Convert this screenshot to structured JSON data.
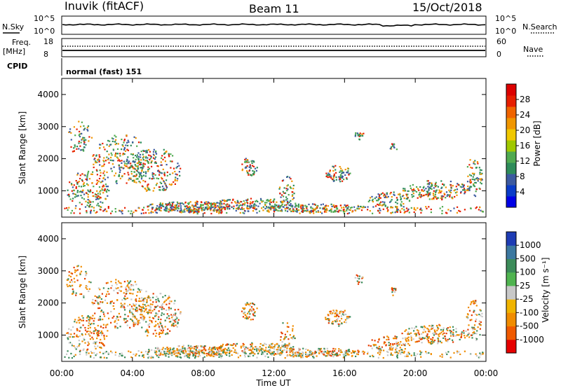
{
  "header": {
    "station": "Inuvik (fitACF)",
    "beam": "Beam 11",
    "date": "15/Oct/2018"
  },
  "panels": {
    "nsky": {
      "label": "N.Sky",
      "left_ticks": [
        "10^5",
        "10^0"
      ]
    },
    "nsearch": {
      "label": "N.Search",
      "right_ticks": [
        "10^5",
        "10^0"
      ]
    },
    "freq": {
      "label_line1": "Freq.",
      "label_line2": "[MHz]",
      "left_ticks": [
        "18",
        "8"
      ]
    },
    "nave": {
      "label": "Nave",
      "right_ticks": [
        "60",
        "0"
      ]
    },
    "cpid": {
      "label": "CPID",
      "value": "normal (fast) 151"
    }
  },
  "chart_data": [
    {
      "type": "heatmap",
      "quantity": "Power",
      "ylabel": "Slant Range [km]",
      "y_ticks": [
        1000,
        2000,
        3000,
        4000
      ],
      "ylim": [
        180,
        4500
      ],
      "xlabel": "Time UT",
      "x_ticks": [
        "00:00",
        "04:00",
        "08:00",
        "12:00",
        "16:00",
        "20:00",
        "00:00"
      ],
      "colorbar": {
        "label": "Power [dB]",
        "ticks": [
          "4",
          "8",
          "12",
          "16",
          "20",
          "24",
          "28"
        ],
        "colors": [
          "#0000e6",
          "#0a3cc8",
          "#3c5aa0",
          "#2e8c5a",
          "#50aa50",
          "#a0c800",
          "#f0c800",
          "#f09600",
          "#f06400",
          "#e61e00",
          "#dc0000"
        ]
      }
    },
    {
      "type": "heatmap",
      "quantity": "Velocity",
      "ylabel": "Slant Range [km]",
      "y_ticks": [
        1000,
        2000,
        3000,
        4000
      ],
      "ylim": [
        180,
        4500
      ],
      "xlabel": "Time UT",
      "x_ticks": [
        "00:00",
        "04:00",
        "08:00",
        "12:00",
        "16:00",
        "20:00",
        "00:00"
      ],
      "colorbar": {
        "label": "Velocity [m s⁻¹]",
        "ticks": [
          "1000",
          "500",
          "100",
          "25",
          "-25",
          "-100",
          "-500",
          "-1000"
        ],
        "colors": [
          "#1e3cb4",
          "#3c78a0",
          "#3c8c5a",
          "#50b450",
          "#c8c8c8",
          "#f0b400",
          "#f08c00",
          "#f05a00",
          "#e60000"
        ]
      }
    }
  ],
  "echo_colors": {
    "power_strong": "#e61e00",
    "power_mid": "#f09600",
    "power_green": "#50aa50",
    "power_teal": "#2e8c5a",
    "power_blue": "#3c5aa0",
    "vel_orange": "#f08c00",
    "vel_gray": "#c8c8c8",
    "vel_green": "#3c8c5a",
    "vel_red": "#e63c00"
  }
}
